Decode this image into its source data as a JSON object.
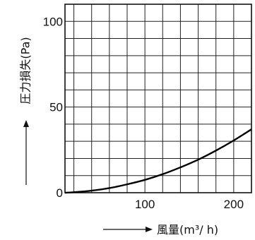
{
  "chart_data": {
    "type": "line",
    "xlabel": "風量(m³/ h)",
    "ylabel": "圧力損失(Pa)",
    "xlim": [
      10,
      220
    ],
    "ylim": [
      0,
      110
    ],
    "x_ticks": [
      100,
      200
    ],
    "y_ticks": [
      0,
      50,
      100
    ],
    "grid": true,
    "x_minor_step": 20,
    "y_minor_step": 10,
    "series": [
      {
        "x": [
          10,
          20,
          40,
          60,
          80,
          100,
          120,
          140,
          160,
          180,
          200,
          220
        ],
        "values": [
          0,
          0.3,
          1.2,
          2.7,
          4.9,
          7.5,
          10.8,
          14.8,
          19.3,
          24.6,
          30.5,
          37
        ]
      }
    ]
  }
}
